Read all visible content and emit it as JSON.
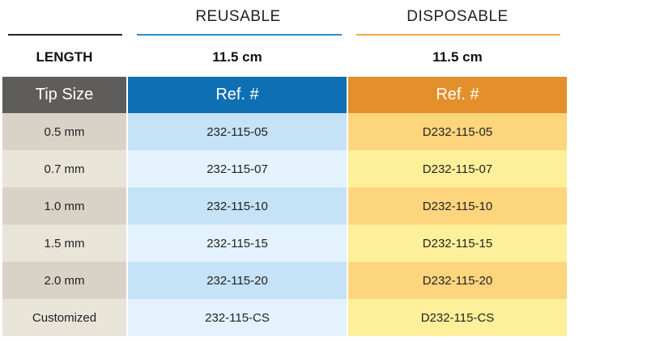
{
  "headers": {
    "reusable": "REUSABLE",
    "disposable": "DISPOSABLE"
  },
  "length_row": {
    "label": "LENGTH",
    "reusable": "11.5 cm",
    "disposable": "11.5 cm"
  },
  "table": {
    "columns": [
      "Tip Size",
      "Ref. #",
      "Ref. #"
    ],
    "rows": [
      {
        "tip": "0.5 mm",
        "reusable": "232-115-05",
        "disposable": "D232-115-05"
      },
      {
        "tip": "0.7 mm",
        "reusable": "232-115-07",
        "disposable": "D232-115-07"
      },
      {
        "tip": "1.0 mm",
        "reusable": "232-115-10",
        "disposable": "D232-115-10"
      },
      {
        "tip": "1.5 mm",
        "reusable": "232-115-15",
        "disposable": "D232-115-15"
      },
      {
        "tip": "2.0 mm",
        "reusable": "232-115-20",
        "disposable": "D232-115-20"
      },
      {
        "tip": "Customized",
        "reusable": "232-115-CS",
        "disposable": "D232-115-CS"
      }
    ]
  },
  "colors": {
    "tip_header": "#5e5d5b",
    "reusable_accent": "#0e6fb2",
    "disposable_accent": "#e38f2c",
    "label_rule": "#222222",
    "reusable_rule": "#2a8ad0",
    "disposable_rule": "#efa94a"
  }
}
